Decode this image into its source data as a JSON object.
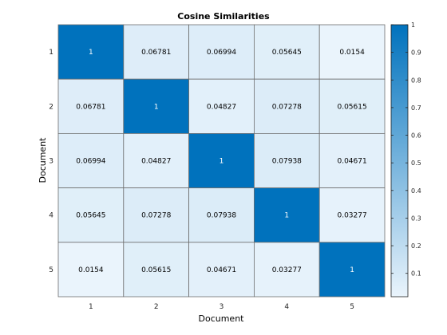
{
  "chart_data": {
    "type": "heatmap",
    "title": "Cosine Similarities",
    "xlabel": "Document",
    "ylabel": "Document",
    "x_categories": [
      "1",
      "2",
      "3",
      "4",
      "5"
    ],
    "y_categories": [
      "1",
      "2",
      "3",
      "4",
      "5"
    ],
    "values": [
      [
        1,
        0.06781,
        0.06994,
        0.05645,
        0.0154
      ],
      [
        0.06781,
        1,
        0.04827,
        0.07278,
        0.05615
      ],
      [
        0.06994,
        0.04827,
        1,
        0.07938,
        0.04671
      ],
      [
        0.05645,
        0.07278,
        0.07938,
        1,
        0.03277
      ],
      [
        0.0154,
        0.05615,
        0.04671,
        0.03277,
        1
      ]
    ],
    "value_labels": [
      [
        "1",
        "0.06781",
        "0.06994",
        "0.05645",
        "0.0154"
      ],
      [
        "0.06781",
        "1",
        "0.04827",
        "0.07278",
        "0.05615"
      ],
      [
        "0.06994",
        "0.04827",
        "1",
        "0.07938",
        "0.04671"
      ],
      [
        "0.05645",
        "0.07278",
        "0.07938",
        "1",
        "0.03277"
      ],
      [
        "0.0154",
        "0.05615",
        "0.04671",
        "0.03277",
        "1"
      ]
    ],
    "colorbar": {
      "range": [
        0.0154,
        1
      ],
      "ticks": [
        0.1,
        0.2,
        0.3,
        0.4,
        0.5,
        0.6,
        0.7,
        0.8,
        0.9,
        1
      ],
      "tick_labels": [
        "0.1",
        "0.2",
        "0.3",
        "0.4",
        "0.5",
        "0.6",
        "0.7",
        "0.8",
        "0.9",
        "1"
      ],
      "low_color": "#eaf4fc",
      "high_color": "#0072bd"
    },
    "colors": {
      "grid_line": "#6e6e6e",
      "text_dark": "#000000",
      "text_light": "#ffffff"
    }
  }
}
